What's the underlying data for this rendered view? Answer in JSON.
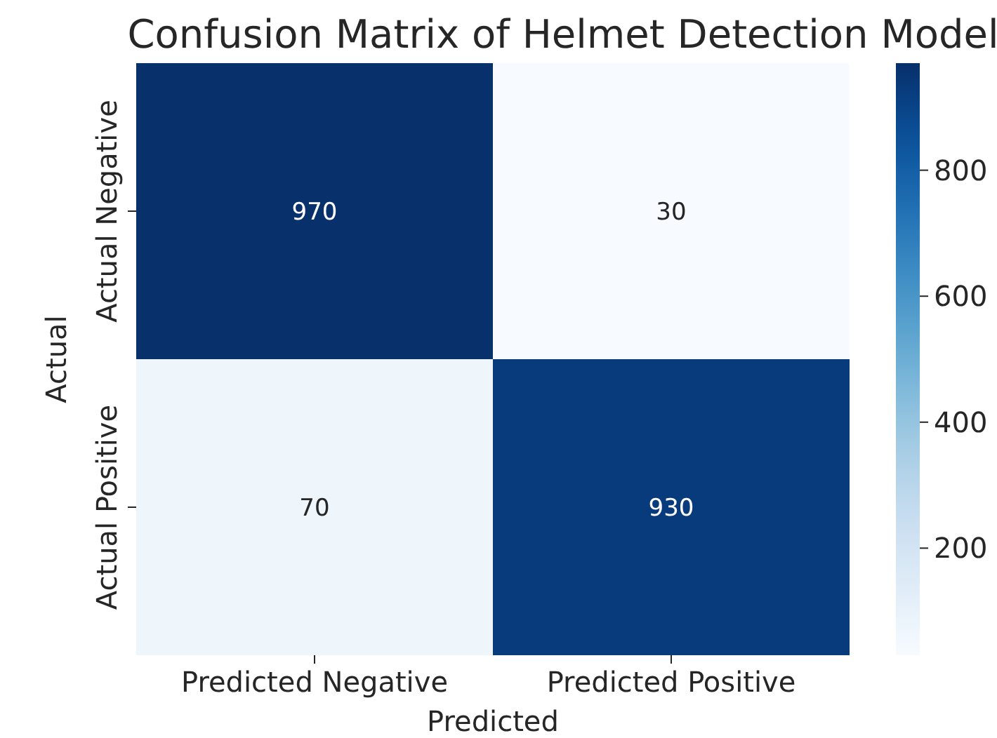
{
  "chart_data": {
    "type": "heatmap",
    "title": "Confusion Matrix of Helmet Detection Model",
    "xlabel": "Predicted",
    "ylabel": "Actual",
    "categories": [
      "Predicted Negative",
      "Predicted Positive"
    ],
    "y_categories": [
      "Actual Negative",
      "Actual Positive"
    ],
    "cells": [
      [
        970,
        30
      ],
      [
        70,
        930
      ]
    ],
    "data_labels": true,
    "clim": [
      30,
      970
    ],
    "cticks": [
      200,
      400,
      600,
      800
    ]
  }
}
